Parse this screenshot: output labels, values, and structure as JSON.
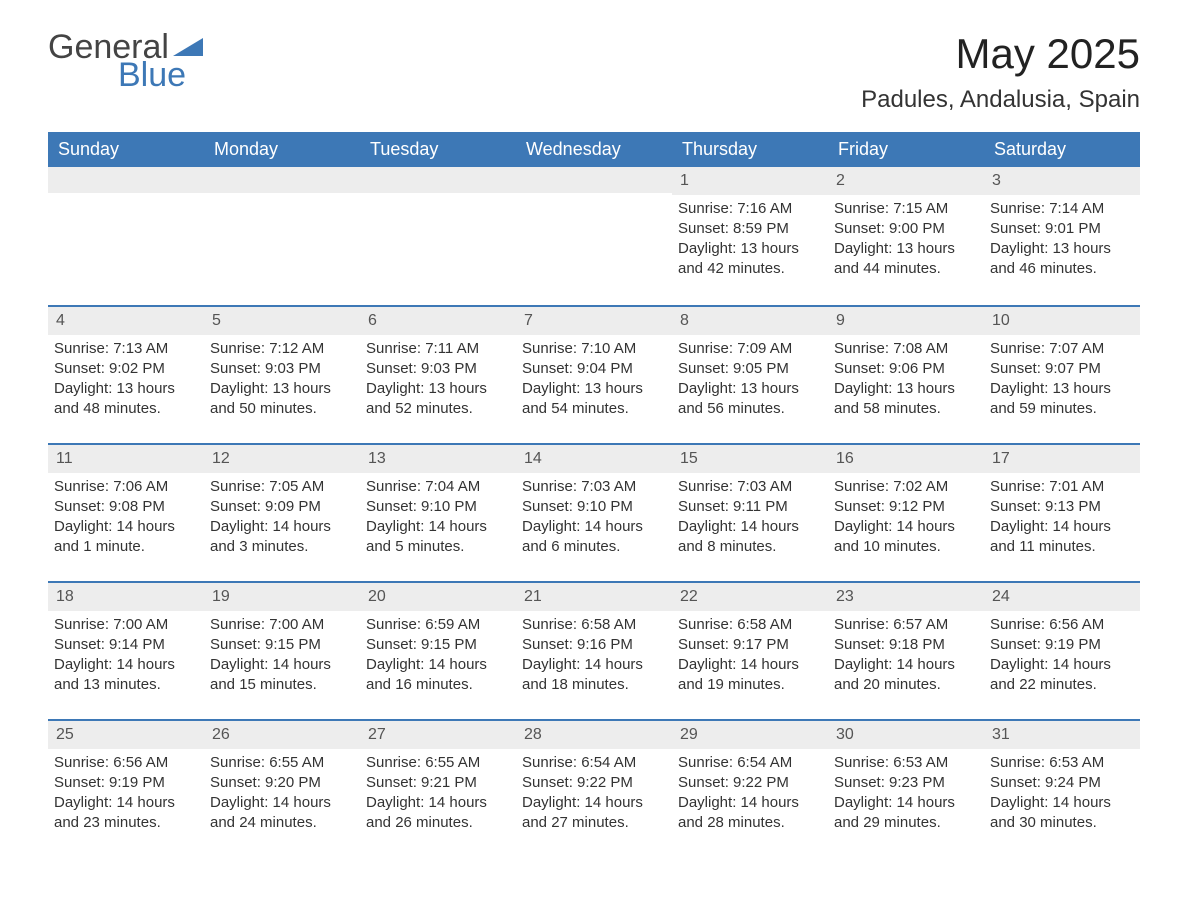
{
  "logo": {
    "general": "General",
    "blue": "Blue",
    "tri_color": "#3d78b6"
  },
  "title": "May 2025",
  "location": "Padules, Andalusia, Spain",
  "colors": {
    "header_bg": "#3d78b6",
    "header_text": "#ffffff",
    "daynum_bg": "#ededed",
    "text": "#333333",
    "divider": "#3d78b6"
  },
  "day_headers": [
    "Sunday",
    "Monday",
    "Tuesday",
    "Wednesday",
    "Thursday",
    "Friday",
    "Saturday"
  ],
  "weeks": [
    [
      {
        "n": "",
        "sr": "",
        "ss": "",
        "dl": ""
      },
      {
        "n": "",
        "sr": "",
        "ss": "",
        "dl": ""
      },
      {
        "n": "",
        "sr": "",
        "ss": "",
        "dl": ""
      },
      {
        "n": "",
        "sr": "",
        "ss": "",
        "dl": ""
      },
      {
        "n": "1",
        "sr": "Sunrise: 7:16 AM",
        "ss": "Sunset: 8:59 PM",
        "dl": "Daylight: 13 hours and 42 minutes."
      },
      {
        "n": "2",
        "sr": "Sunrise: 7:15 AM",
        "ss": "Sunset: 9:00 PM",
        "dl": "Daylight: 13 hours and 44 minutes."
      },
      {
        "n": "3",
        "sr": "Sunrise: 7:14 AM",
        "ss": "Sunset: 9:01 PM",
        "dl": "Daylight: 13 hours and 46 minutes."
      }
    ],
    [
      {
        "n": "4",
        "sr": "Sunrise: 7:13 AM",
        "ss": "Sunset: 9:02 PM",
        "dl": "Daylight: 13 hours and 48 minutes."
      },
      {
        "n": "5",
        "sr": "Sunrise: 7:12 AM",
        "ss": "Sunset: 9:03 PM",
        "dl": "Daylight: 13 hours and 50 minutes."
      },
      {
        "n": "6",
        "sr": "Sunrise: 7:11 AM",
        "ss": "Sunset: 9:03 PM",
        "dl": "Daylight: 13 hours and 52 minutes."
      },
      {
        "n": "7",
        "sr": "Sunrise: 7:10 AM",
        "ss": "Sunset: 9:04 PM",
        "dl": "Daylight: 13 hours and 54 minutes."
      },
      {
        "n": "8",
        "sr": "Sunrise: 7:09 AM",
        "ss": "Sunset: 9:05 PM",
        "dl": "Daylight: 13 hours and 56 minutes."
      },
      {
        "n": "9",
        "sr": "Sunrise: 7:08 AM",
        "ss": "Sunset: 9:06 PM",
        "dl": "Daylight: 13 hours and 58 minutes."
      },
      {
        "n": "10",
        "sr": "Sunrise: 7:07 AM",
        "ss": "Sunset: 9:07 PM",
        "dl": "Daylight: 13 hours and 59 minutes."
      }
    ],
    [
      {
        "n": "11",
        "sr": "Sunrise: 7:06 AM",
        "ss": "Sunset: 9:08 PM",
        "dl": "Daylight: 14 hours and 1 minute."
      },
      {
        "n": "12",
        "sr": "Sunrise: 7:05 AM",
        "ss": "Sunset: 9:09 PM",
        "dl": "Daylight: 14 hours and 3 minutes."
      },
      {
        "n": "13",
        "sr": "Sunrise: 7:04 AM",
        "ss": "Sunset: 9:10 PM",
        "dl": "Daylight: 14 hours and 5 minutes."
      },
      {
        "n": "14",
        "sr": "Sunrise: 7:03 AM",
        "ss": "Sunset: 9:10 PM",
        "dl": "Daylight: 14 hours and 6 minutes."
      },
      {
        "n": "15",
        "sr": "Sunrise: 7:03 AM",
        "ss": "Sunset: 9:11 PM",
        "dl": "Daylight: 14 hours and 8 minutes."
      },
      {
        "n": "16",
        "sr": "Sunrise: 7:02 AM",
        "ss": "Sunset: 9:12 PM",
        "dl": "Daylight: 14 hours and 10 minutes."
      },
      {
        "n": "17",
        "sr": "Sunrise: 7:01 AM",
        "ss": "Sunset: 9:13 PM",
        "dl": "Daylight: 14 hours and 11 minutes."
      }
    ],
    [
      {
        "n": "18",
        "sr": "Sunrise: 7:00 AM",
        "ss": "Sunset: 9:14 PM",
        "dl": "Daylight: 14 hours and 13 minutes."
      },
      {
        "n": "19",
        "sr": "Sunrise: 7:00 AM",
        "ss": "Sunset: 9:15 PM",
        "dl": "Daylight: 14 hours and 15 minutes."
      },
      {
        "n": "20",
        "sr": "Sunrise: 6:59 AM",
        "ss": "Sunset: 9:15 PM",
        "dl": "Daylight: 14 hours and 16 minutes."
      },
      {
        "n": "21",
        "sr": "Sunrise: 6:58 AM",
        "ss": "Sunset: 9:16 PM",
        "dl": "Daylight: 14 hours and 18 minutes."
      },
      {
        "n": "22",
        "sr": "Sunrise: 6:58 AM",
        "ss": "Sunset: 9:17 PM",
        "dl": "Daylight: 14 hours and 19 minutes."
      },
      {
        "n": "23",
        "sr": "Sunrise: 6:57 AM",
        "ss": "Sunset: 9:18 PM",
        "dl": "Daylight: 14 hours and 20 minutes."
      },
      {
        "n": "24",
        "sr": "Sunrise: 6:56 AM",
        "ss": "Sunset: 9:19 PM",
        "dl": "Daylight: 14 hours and 22 minutes."
      }
    ],
    [
      {
        "n": "25",
        "sr": "Sunrise: 6:56 AM",
        "ss": "Sunset: 9:19 PM",
        "dl": "Daylight: 14 hours and 23 minutes."
      },
      {
        "n": "26",
        "sr": "Sunrise: 6:55 AM",
        "ss": "Sunset: 9:20 PM",
        "dl": "Daylight: 14 hours and 24 minutes."
      },
      {
        "n": "27",
        "sr": "Sunrise: 6:55 AM",
        "ss": "Sunset: 9:21 PM",
        "dl": "Daylight: 14 hours and 26 minutes."
      },
      {
        "n": "28",
        "sr": "Sunrise: 6:54 AM",
        "ss": "Sunset: 9:22 PM",
        "dl": "Daylight: 14 hours and 27 minutes."
      },
      {
        "n": "29",
        "sr": "Sunrise: 6:54 AM",
        "ss": "Sunset: 9:22 PM",
        "dl": "Daylight: 14 hours and 28 minutes."
      },
      {
        "n": "30",
        "sr": "Sunrise: 6:53 AM",
        "ss": "Sunset: 9:23 PM",
        "dl": "Daylight: 14 hours and 29 minutes."
      },
      {
        "n": "31",
        "sr": "Sunrise: 6:53 AM",
        "ss": "Sunset: 9:24 PM",
        "dl": "Daylight: 14 hours and 30 minutes."
      }
    ]
  ]
}
